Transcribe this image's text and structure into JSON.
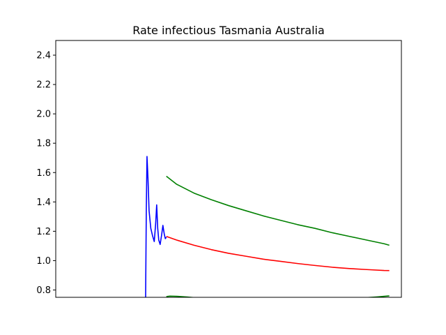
{
  "chart_data": {
    "type": "line",
    "title": "Rate infectious Tasmania Australia",
    "xlabel": "",
    "ylabel": "",
    "ylim": [
      0.75,
      2.5
    ],
    "xlim": [
      0,
      100
    ],
    "yticks": [
      0.8,
      1.0,
      1.2,
      1.4,
      1.6,
      1.8,
      2.0,
      2.2,
      2.4
    ],
    "grid": false,
    "series": [
      {
        "color": "#0000ff",
        "x": [
          26.0,
          26.2,
          26.4,
          26.7,
          27.0,
          27.5,
          28.0,
          28.5,
          28.9,
          29.2,
          29.5,
          29.8,
          30.2,
          30.6,
          31.0,
          31.4,
          31.7,
          32.0
        ],
        "y": [
          0.75,
          1.35,
          1.71,
          1.55,
          1.34,
          1.22,
          1.17,
          1.13,
          1.25,
          1.38,
          1.22,
          1.14,
          1.11,
          1.17,
          1.24,
          1.18,
          1.15,
          1.16
        ]
      },
      {
        "color": "#ff0000",
        "x": [
          32.0,
          35,
          40,
          45,
          50,
          55,
          60,
          65,
          70,
          75,
          80,
          85,
          90,
          95,
          96.5
        ],
        "y": [
          1.165,
          1.14,
          1.105,
          1.075,
          1.05,
          1.03,
          1.01,
          0.995,
          0.98,
          0.967,
          0.955,
          0.946,
          0.939,
          0.933,
          0.932
        ]
      },
      {
        "color": "#008000",
        "x": [
          32.0,
          35,
          40,
          45,
          50,
          55,
          60,
          65,
          70,
          75,
          80,
          85,
          90,
          95,
          96.5
        ],
        "y": [
          1.575,
          1.52,
          1.46,
          1.415,
          1.375,
          1.34,
          1.305,
          1.275,
          1.245,
          1.22,
          1.19,
          1.165,
          1.14,
          1.115,
          1.105
        ]
      },
      {
        "color": "#008000",
        "x": [
          32.0,
          33,
          35,
          38,
          40,
          42,
          45,
          50,
          55,
          60,
          65,
          70,
          75,
          80,
          85,
          88,
          90,
          93,
          95,
          96.5
        ],
        "y": [
          0.755,
          0.758,
          0.757,
          0.752,
          0.748,
          0.743,
          0.738,
          0.733,
          0.73,
          0.728,
          0.727,
          0.728,
          0.73,
          0.733,
          0.738,
          0.743,
          0.748,
          0.753,
          0.757,
          0.76
        ]
      }
    ]
  }
}
